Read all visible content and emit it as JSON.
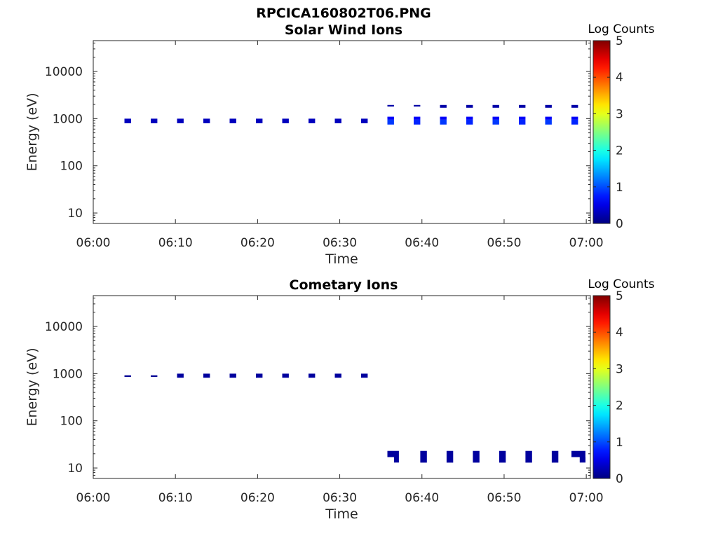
{
  "figure_title": "RPCICA160802T06.PNG",
  "chart_data": [
    {
      "type": "heatmap",
      "title": "Solar Wind Ions",
      "xlabel": "Time",
      "ylabel": "Energy (eV)",
      "x_ticks": [
        "06:00",
        "06:10",
        "06:20",
        "06:30",
        "06:40",
        "06:50",
        "07:00"
      ],
      "x_range_minutes": [
        0,
        60.5
      ],
      "y_scale": "log",
      "y_ticks": [
        "10",
        "100",
        "1000",
        "10000"
      ],
      "y_range": [
        6,
        45000
      ],
      "colorbar": {
        "label": "Log Counts",
        "range": [
          0,
          5
        ],
        "ticks": [
          "0",
          "1",
          "2",
          "3",
          "4",
          "5"
        ],
        "colormap": "jet"
      },
      "cells": [
        {
          "t0": 3.8,
          "t1": 4.6,
          "e0": 800,
          "e1": 1000,
          "v": 0.3
        },
        {
          "t0": 7.0,
          "t1": 7.8,
          "e0": 800,
          "e1": 1000,
          "v": 0.3
        },
        {
          "t0": 10.2,
          "t1": 11.0,
          "e0": 800,
          "e1": 1000,
          "v": 0.3
        },
        {
          "t0": 13.4,
          "t1": 14.2,
          "e0": 800,
          "e1": 1000,
          "v": 0.3
        },
        {
          "t0": 16.6,
          "t1": 17.4,
          "e0": 800,
          "e1": 1000,
          "v": 0.3
        },
        {
          "t0": 19.8,
          "t1": 20.6,
          "e0": 800,
          "e1": 1000,
          "v": 0.3
        },
        {
          "t0": 23.0,
          "t1": 23.8,
          "e0": 800,
          "e1": 1000,
          "v": 0.3
        },
        {
          "t0": 26.2,
          "t1": 27.0,
          "e0": 800,
          "e1": 1000,
          "v": 0.3
        },
        {
          "t0": 29.4,
          "t1": 30.2,
          "e0": 800,
          "e1": 1000,
          "v": 0.3
        },
        {
          "t0": 32.6,
          "t1": 33.4,
          "e0": 800,
          "e1": 1000,
          "v": 0.3
        },
        {
          "t0": 35.8,
          "t1": 36.6,
          "e0": 1800,
          "e1": 1950,
          "v": 0.2
        },
        {
          "t0": 35.8,
          "t1": 36.6,
          "e0": 950,
          "e1": 1100,
          "v": 0.6
        },
        {
          "t0": 35.8,
          "t1": 36.6,
          "e0": 750,
          "e1": 950,
          "v": 0.9
        },
        {
          "t0": 39.0,
          "t1": 39.8,
          "e0": 1800,
          "e1": 1950,
          "v": 0.2
        },
        {
          "t0": 39.0,
          "t1": 39.8,
          "e0": 950,
          "e1": 1100,
          "v": 0.6
        },
        {
          "t0": 39.0,
          "t1": 39.8,
          "e0": 750,
          "e1": 950,
          "v": 0.8
        },
        {
          "t0": 42.2,
          "t1": 43.0,
          "e0": 1700,
          "e1": 1950,
          "v": 0.2
        },
        {
          "t0": 42.2,
          "t1": 43.0,
          "e0": 950,
          "e1": 1100,
          "v": 0.6
        },
        {
          "t0": 42.2,
          "t1": 43.0,
          "e0": 750,
          "e1": 950,
          "v": 0.9
        },
        {
          "t0": 45.4,
          "t1": 46.2,
          "e0": 1700,
          "e1": 1950,
          "v": 0.2
        },
        {
          "t0": 45.4,
          "t1": 46.2,
          "e0": 950,
          "e1": 1100,
          "v": 0.6
        },
        {
          "t0": 45.4,
          "t1": 46.2,
          "e0": 750,
          "e1": 950,
          "v": 0.8
        },
        {
          "t0": 48.6,
          "t1": 49.4,
          "e0": 1700,
          "e1": 1950,
          "v": 0.2
        },
        {
          "t0": 48.6,
          "t1": 49.4,
          "e0": 950,
          "e1": 1100,
          "v": 0.6
        },
        {
          "t0": 48.6,
          "t1": 49.4,
          "e0": 750,
          "e1": 950,
          "v": 0.9
        },
        {
          "t0": 51.8,
          "t1": 52.6,
          "e0": 1700,
          "e1": 1950,
          "v": 0.2
        },
        {
          "t0": 51.8,
          "t1": 52.6,
          "e0": 950,
          "e1": 1100,
          "v": 0.6
        },
        {
          "t0": 51.8,
          "t1": 52.6,
          "e0": 750,
          "e1": 950,
          "v": 0.8
        },
        {
          "t0": 55.0,
          "t1": 55.8,
          "e0": 1700,
          "e1": 1950,
          "v": 0.2
        },
        {
          "t0": 55.0,
          "t1": 55.8,
          "e0": 950,
          "e1": 1100,
          "v": 0.6
        },
        {
          "t0": 55.0,
          "t1": 55.8,
          "e0": 750,
          "e1": 950,
          "v": 0.9
        },
        {
          "t0": 58.2,
          "t1": 59.0,
          "e0": 1700,
          "e1": 1950,
          "v": 0.2
        },
        {
          "t0": 58.2,
          "t1": 59.0,
          "e0": 950,
          "e1": 1100,
          "v": 0.6
        },
        {
          "t0": 58.2,
          "t1": 59.0,
          "e0": 750,
          "e1": 950,
          "v": 0.8
        }
      ]
    },
    {
      "type": "heatmap",
      "title": "Cometary Ions",
      "xlabel": "Time",
      "ylabel": "Energy (eV)",
      "x_ticks": [
        "06:00",
        "06:10",
        "06:20",
        "06:30",
        "06:40",
        "06:50",
        "07:00"
      ],
      "x_range_minutes": [
        0,
        60.5
      ],
      "y_scale": "log",
      "y_ticks": [
        "10",
        "100",
        "1000",
        "10000"
      ],
      "y_range": [
        6,
        45000
      ],
      "colorbar": {
        "label": "Log Counts",
        "range": [
          0,
          5
        ],
        "ticks": [
          "0",
          "1",
          "2",
          "3",
          "4",
          "5"
        ],
        "colormap": "jet"
      },
      "cells": [
        {
          "t0": 3.8,
          "t1": 4.6,
          "e0": 850,
          "e1": 920,
          "v": 0.1
        },
        {
          "t0": 7.0,
          "t1": 7.8,
          "e0": 850,
          "e1": 920,
          "v": 0.1
        },
        {
          "t0": 10.2,
          "t1": 11.0,
          "e0": 820,
          "e1": 1000,
          "v": 0.15
        },
        {
          "t0": 13.4,
          "t1": 14.2,
          "e0": 820,
          "e1": 1000,
          "v": 0.15
        },
        {
          "t0": 16.6,
          "t1": 17.4,
          "e0": 820,
          "e1": 1000,
          "v": 0.15
        },
        {
          "t0": 19.8,
          "t1": 20.6,
          "e0": 820,
          "e1": 1000,
          "v": 0.15
        },
        {
          "t0": 23.0,
          "t1": 23.8,
          "e0": 820,
          "e1": 1000,
          "v": 0.15
        },
        {
          "t0": 26.2,
          "t1": 27.0,
          "e0": 820,
          "e1": 1000,
          "v": 0.15
        },
        {
          "t0": 29.4,
          "t1": 30.2,
          "e0": 820,
          "e1": 1000,
          "v": 0.15
        },
        {
          "t0": 32.6,
          "t1": 33.4,
          "e0": 820,
          "e1": 1000,
          "v": 0.15
        },
        {
          "t0": 35.8,
          "t1": 37.2,
          "e0": 17,
          "e1": 23,
          "v": 0.15
        },
        {
          "t0": 36.6,
          "t1": 37.2,
          "e0": 13,
          "e1": 17,
          "v": 0.15
        },
        {
          "t0": 39.8,
          "t1": 40.6,
          "e0": 13,
          "e1": 23,
          "v": 0.15
        },
        {
          "t0": 43.0,
          "t1": 43.8,
          "e0": 13,
          "e1": 23,
          "v": 0.15
        },
        {
          "t0": 46.2,
          "t1": 47.0,
          "e0": 13,
          "e1": 23,
          "v": 0.15
        },
        {
          "t0": 49.4,
          "t1": 50.2,
          "e0": 13,
          "e1": 23,
          "v": 0.15
        },
        {
          "t0": 52.6,
          "t1": 53.4,
          "e0": 13,
          "e1": 23,
          "v": 0.15
        },
        {
          "t0": 55.8,
          "t1": 56.6,
          "e0": 13,
          "e1": 23,
          "v": 0.15
        },
        {
          "t0": 58.2,
          "t1": 59.9,
          "e0": 17,
          "e1": 23,
          "v": 0.15
        },
        {
          "t0": 59.2,
          "t1": 59.9,
          "e0": 13,
          "e1": 17,
          "v": 0.15
        }
      ]
    }
  ]
}
